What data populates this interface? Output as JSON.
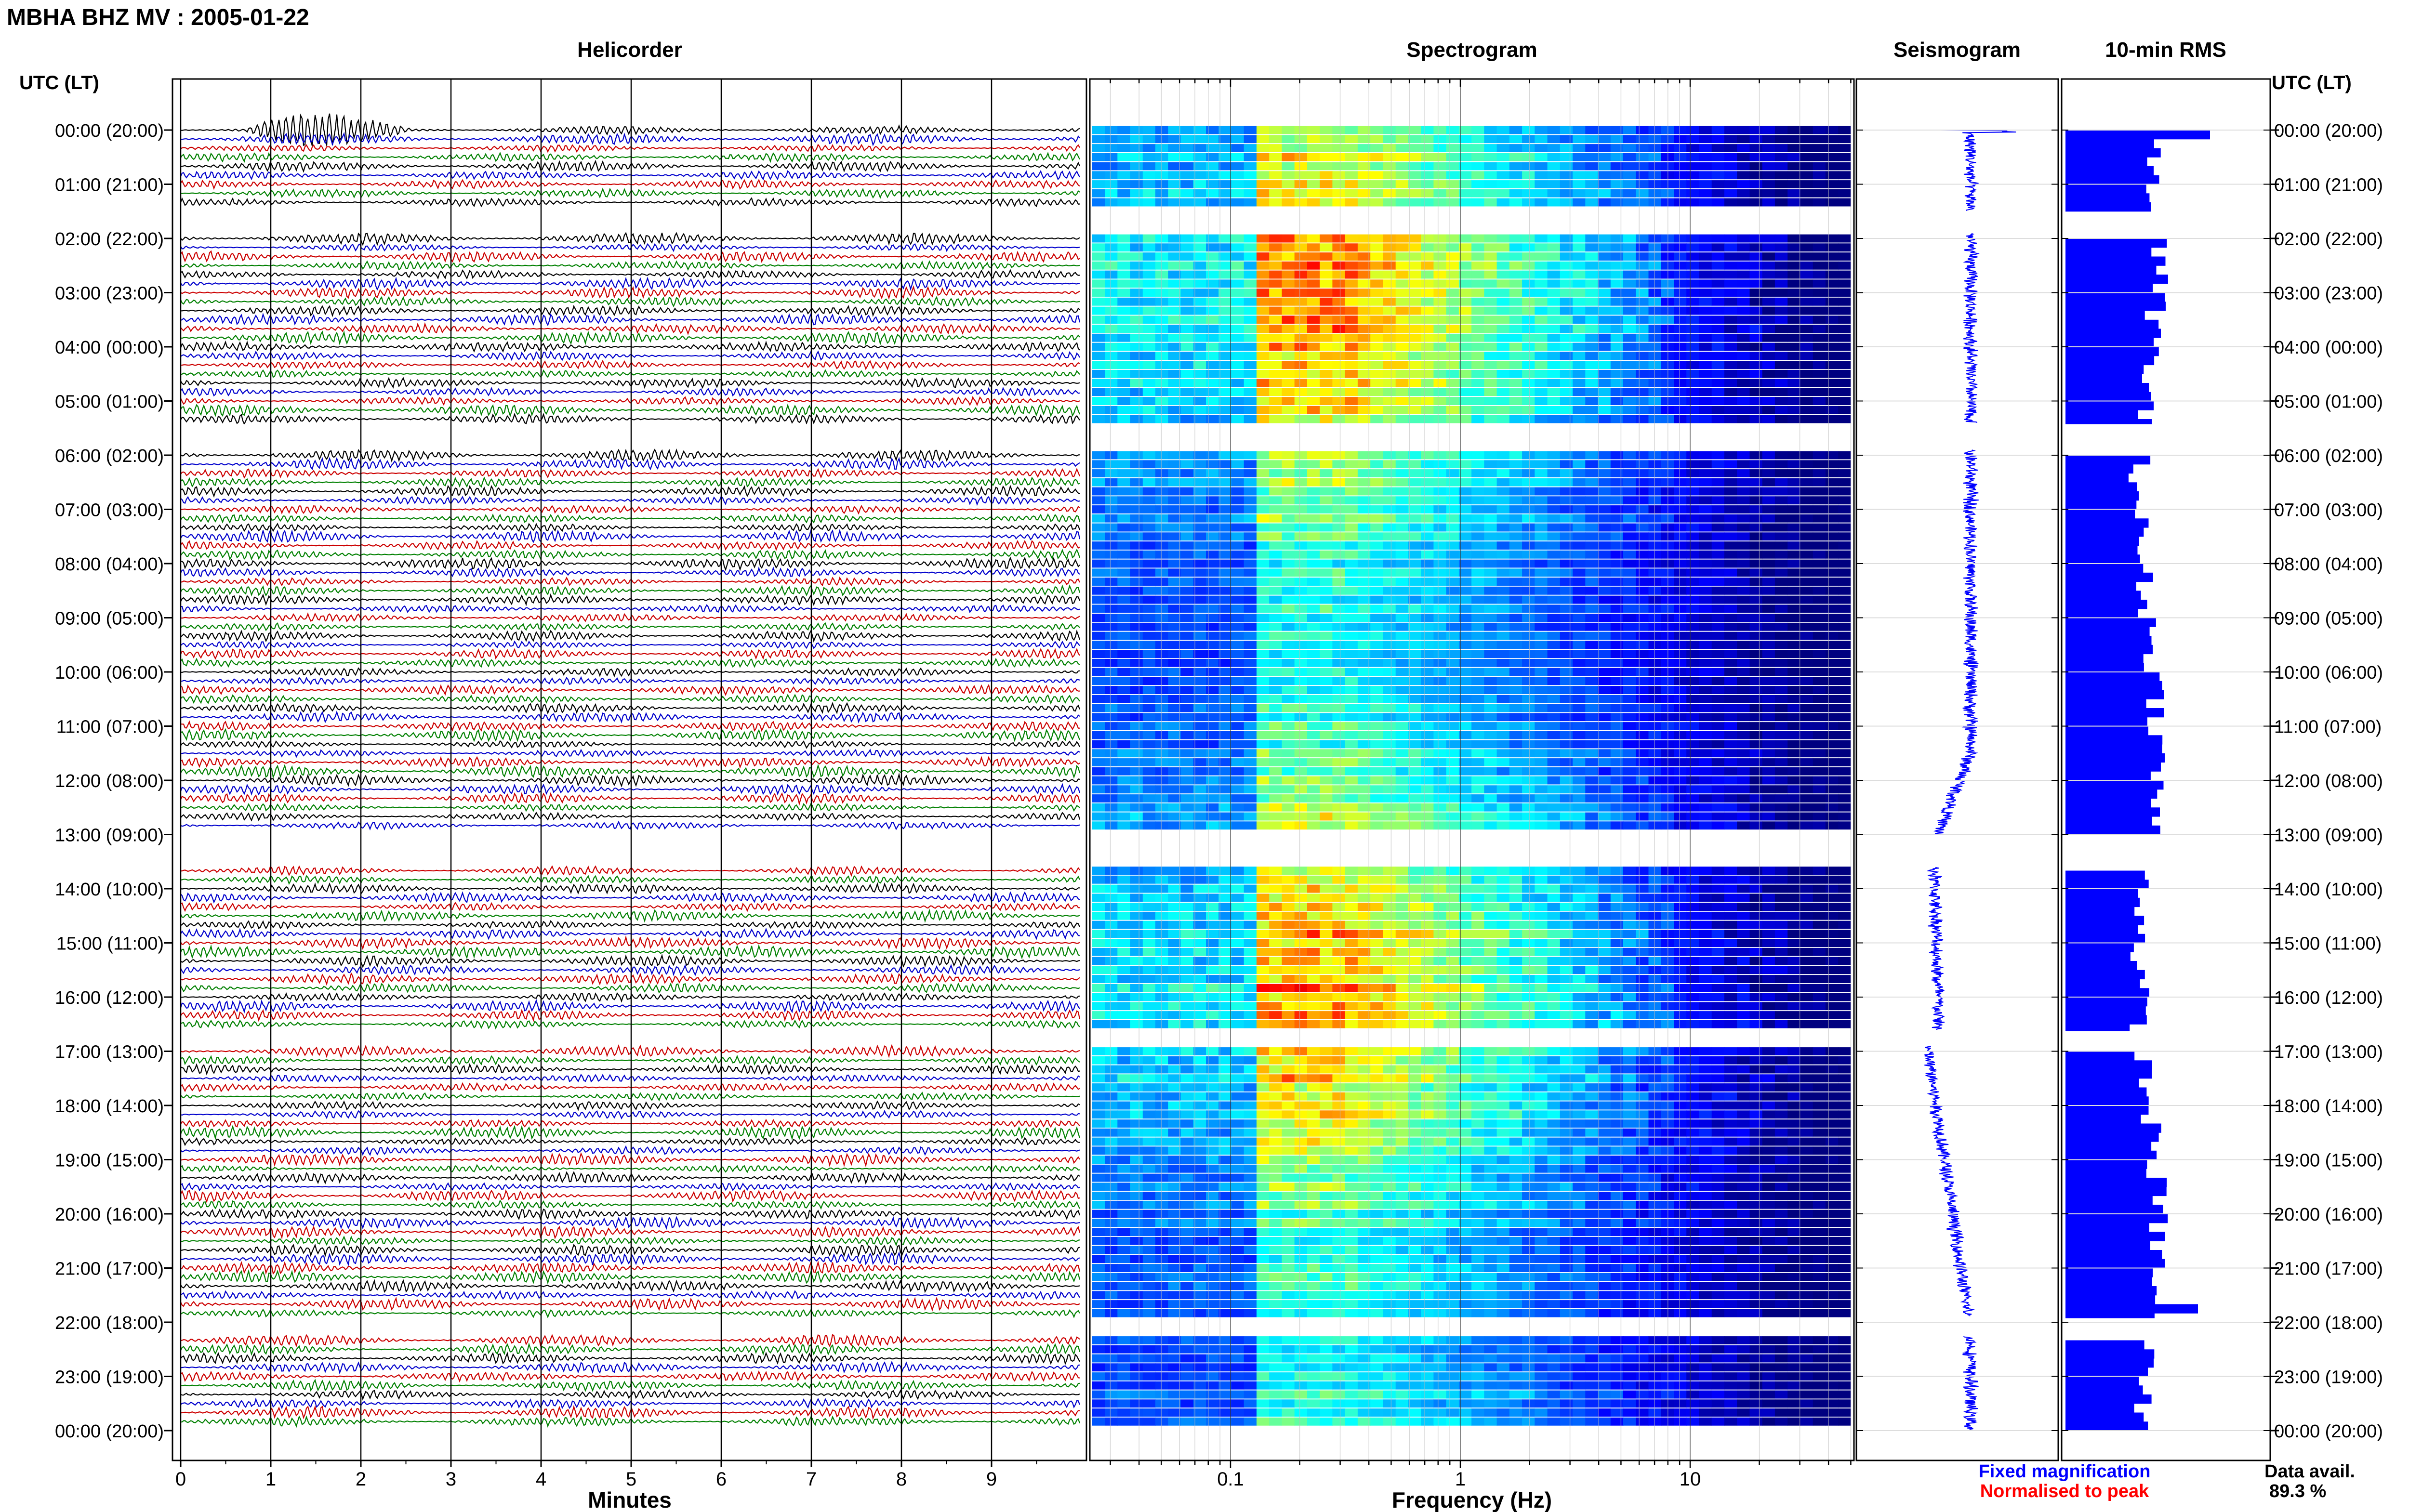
{
  "page": {
    "main_title": "MBHA BHZ MV : 2005-01-22",
    "utc_label_left": "UTC (LT)",
    "utc_label_right": "UTC (LT)",
    "fixed_magnification": "Fixed magnification",
    "normalised_to_peak": "Normalised to peak",
    "data_avail_label": "Data avail.",
    "data_avail_value": "89.3 %"
  },
  "colors": {
    "trace_cycle": [
      "#000000",
      "#0000cc",
      "#cc0000",
      "#008000"
    ],
    "rms_bar": "#0000ff",
    "seismogram": "#0000ff",
    "fixed_magnification": "#0000ff",
    "normalised_to_peak": "#ff0000",
    "spectrogram_colormap": "jet"
  },
  "time_axis": {
    "hour_labels": [
      "00:00 (20:00)",
      "01:00 (21:00)",
      "02:00 (22:00)",
      "03:00 (23:00)",
      "04:00 (00:00)",
      "05:00 (01:00)",
      "06:00 (02:00)",
      "07:00 (03:00)",
      "08:00 (04:00)",
      "09:00 (05:00)",
      "10:00 (06:00)",
      "11:00 (07:00)",
      "12:00 (08:00)",
      "13:00 (09:00)",
      "14:00 (10:00)",
      "15:00 (11:00)",
      "16:00 (12:00)",
      "17:00 (13:00)",
      "18:00 (14:00)",
      "19:00 (15:00)",
      "20:00 (16:00)",
      "21:00 (17:00)",
      "22:00 (18:00)",
      "23:00 (19:00)",
      "00:00 (20:00)"
    ],
    "hours_range": [
      0,
      24
    ],
    "rows_per_hour": 6,
    "gaps_hours": [
      [
        1.5,
        1.9
      ],
      [
        5.4,
        5.9
      ],
      [
        13.0,
        13.6
      ],
      [
        16.6,
        16.9
      ],
      [
        21.9,
        22.25
      ]
    ]
  },
  "chart_data": [
    {
      "type": "line",
      "title": "Helicorder",
      "xlabel": "Minutes",
      "xlim": [
        0,
        10
      ],
      "x_ticks": [
        "0",
        "1",
        "2",
        "3",
        "4",
        "5",
        "6",
        "7",
        "8",
        "9"
      ],
      "rows": 144,
      "events": [
        {
          "hour": 0.0,
          "minute_start": 0.7,
          "minute_end": 2.5,
          "amplitude": "high"
        },
        {
          "hour": 21.25,
          "minute_start": 9.65,
          "minute_end": 9.9,
          "amplitude": "medium"
        }
      ]
    },
    {
      "type": "heatmap",
      "title": "Spectrogram",
      "xlabel": "Frequency (Hz)",
      "x_scale": "log",
      "xlim": [
        0.025,
        50
      ],
      "x_ticks": [
        "0.1",
        "1",
        "10"
      ],
      "colormap": "jet",
      "rows": 144
    },
    {
      "type": "line",
      "title": "Seismogram",
      "hours_range": [
        0,
        24
      ]
    },
    {
      "type": "bar",
      "title": "10-min RMS",
      "orientation": "horizontal",
      "rows": 144
    }
  ]
}
